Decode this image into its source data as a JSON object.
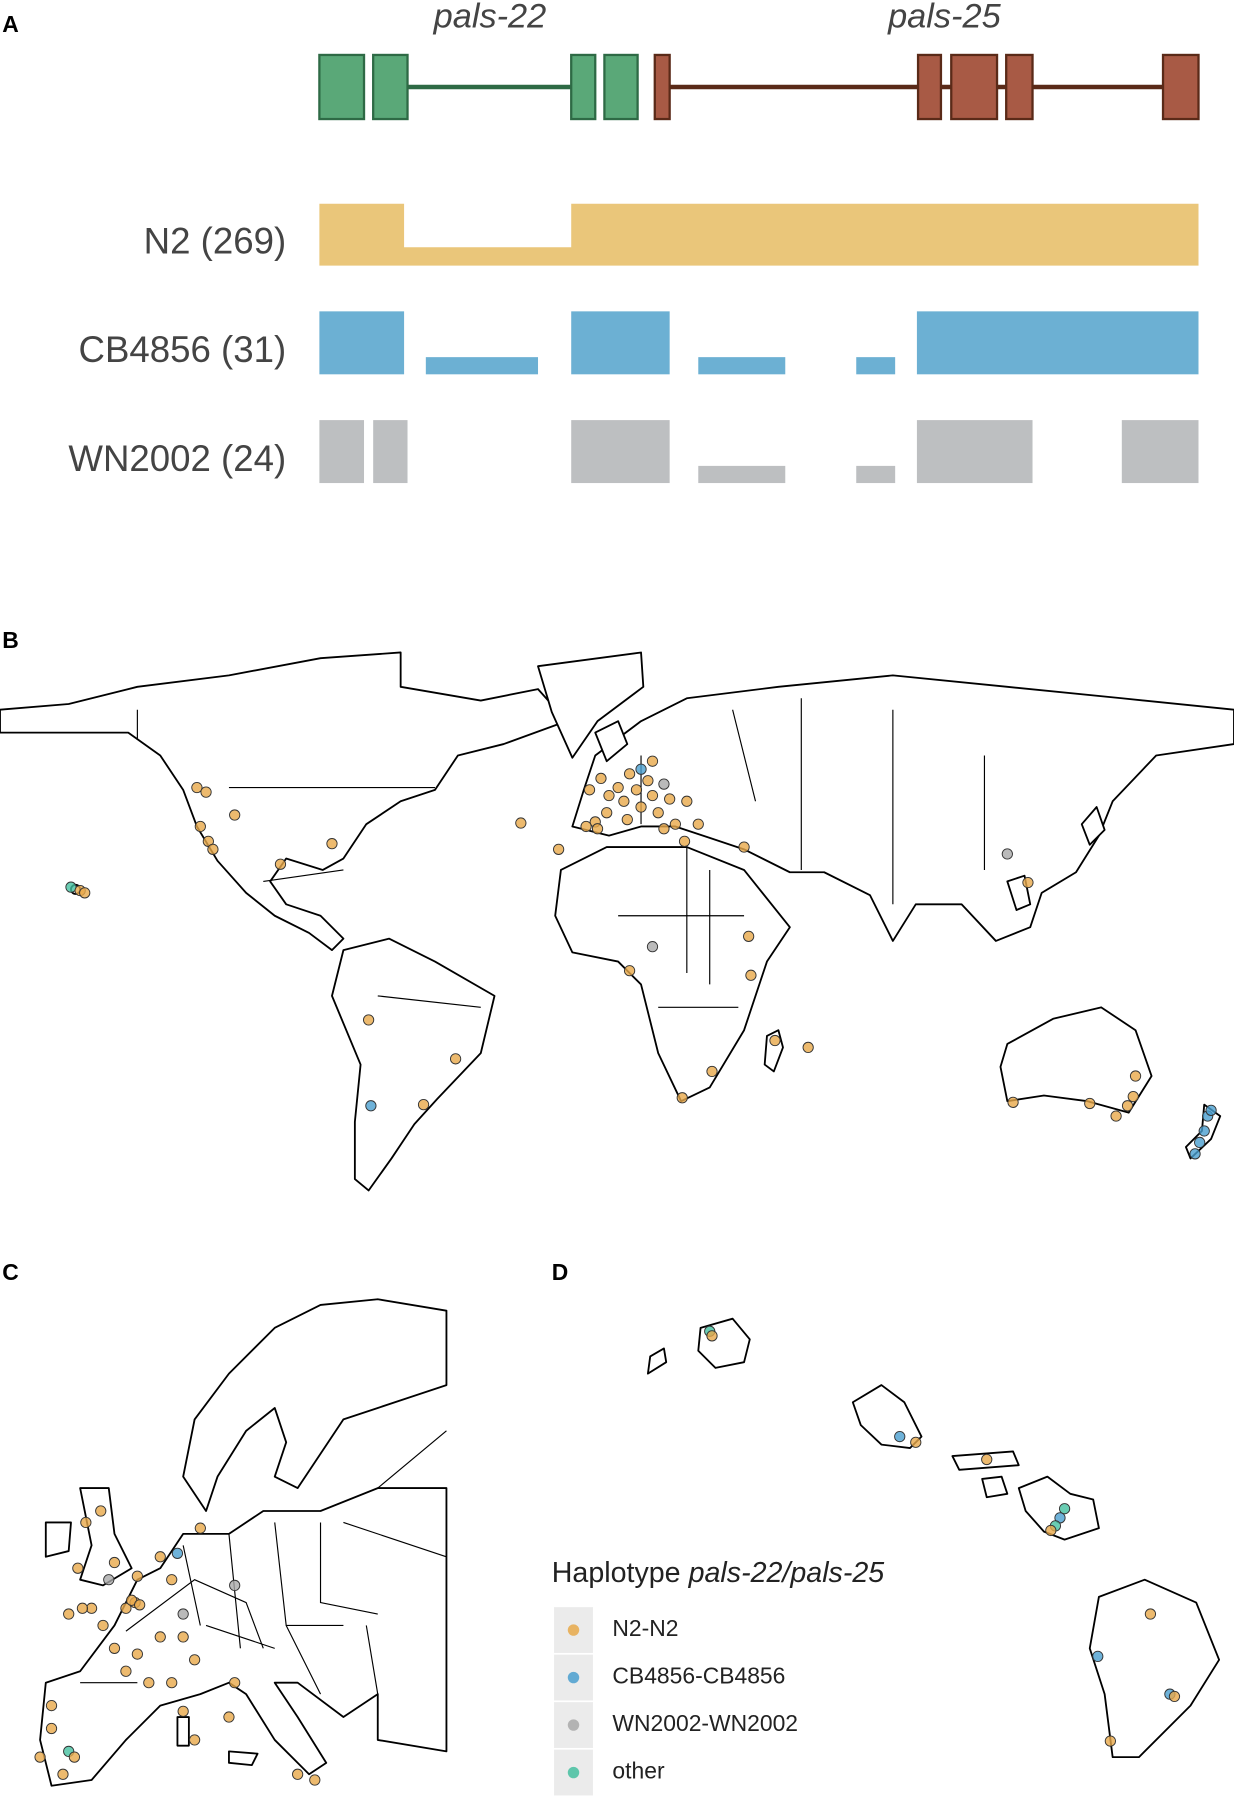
{
  "panel_a": {
    "label": "A",
    "genes": [
      "pals-22",
      "pals-25"
    ],
    "haplotypes": [
      "N2 (269)",
      "CB4856 (31)",
      "WN2002 (24)"
    ]
  },
  "panel_b": {
    "label": "B"
  },
  "panel_c": {
    "label": "C"
  },
  "panel_d": {
    "label": "D"
  },
  "legend": {
    "title": "Haplotype",
    "title_genes": "pals-22/pals-25",
    "items": [
      {
        "label": "N2-N2",
        "color": "#e8a94a"
      },
      {
        "label": "CB4856-CB4856",
        "color": "#4a9fcf"
      },
      {
        "label": "WN2002-WN2002",
        "color": "#a9a9a9"
      },
      {
        "label": "other",
        "color": "#45c0a0"
      }
    ]
  }
}
